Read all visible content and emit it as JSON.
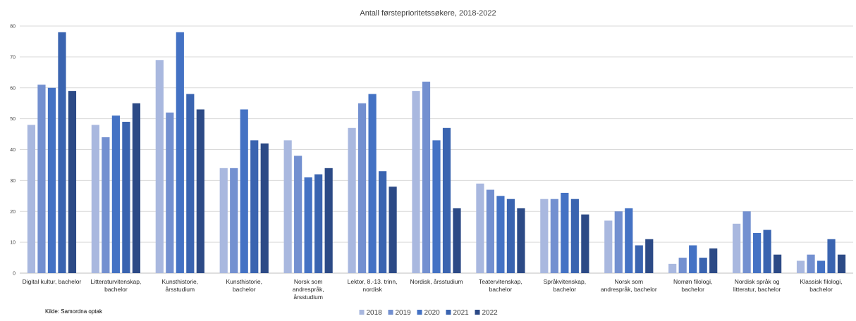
{
  "chart_data": {
    "type": "bar",
    "title": "Antall førsteprioritetssøkere, 2018-2022",
    "source": "Kilde: Samordna optak",
    "ylim": [
      0,
      80
    ],
    "yticks": [
      0,
      10,
      20,
      30,
      40,
      50,
      60,
      70,
      80
    ],
    "grid": true,
    "legend_position": "bottom",
    "categories": [
      [
        "Digital kultur, bachelor"
      ],
      [
        "Litteraturvitenskap,",
        "bachelor"
      ],
      [
        "Kunsthistorie,",
        "årsstudium"
      ],
      [
        "Kunsthistorie,",
        "bachelor"
      ],
      [
        "Norsk som",
        "andrespråk,",
        "årsstudium"
      ],
      [
        "Lektor, 8.-13. trinn,",
        "nordisk"
      ],
      [
        "Nordisk, årsstudium"
      ],
      [
        "Teatervitenskap,",
        "bachelor"
      ],
      [
        "Språkvitenskap,",
        "bachelor"
      ],
      [
        "Norsk som",
        "andrespråk, bachelor"
      ],
      [
        "Norrøn filologi,",
        "bachelor"
      ],
      [
        "Nordisk språk og",
        "litteratur, bachelor"
      ],
      [
        "Klassisk filologi,",
        "bachelor"
      ]
    ],
    "series": [
      {
        "name": "2018",
        "color": "#a9b8df",
        "values": [
          48,
          48,
          69,
          34,
          43,
          47,
          59,
          29,
          24,
          17,
          3,
          16,
          4
        ]
      },
      {
        "name": "2019",
        "color": "#7390d0",
        "values": [
          61,
          44,
          52,
          34,
          38,
          55,
          62,
          27,
          24,
          20,
          5,
          20,
          6
        ]
      },
      {
        "name": "2020",
        "color": "#4472c4",
        "values": [
          60,
          51,
          78,
          53,
          31,
          58,
          43,
          25,
          26,
          21,
          9,
          13,
          4
        ]
      },
      {
        "name": "2021",
        "color": "#3a64b0",
        "values": [
          78,
          49,
          58,
          43,
          32,
          33,
          47,
          24,
          24,
          9,
          5,
          14,
          11
        ]
      },
      {
        "name": "2022",
        "color": "#2c4a86",
        "values": [
          59,
          55,
          53,
          42,
          34,
          28,
          21,
          21,
          19,
          11,
          8,
          6,
          6
        ]
      }
    ]
  }
}
